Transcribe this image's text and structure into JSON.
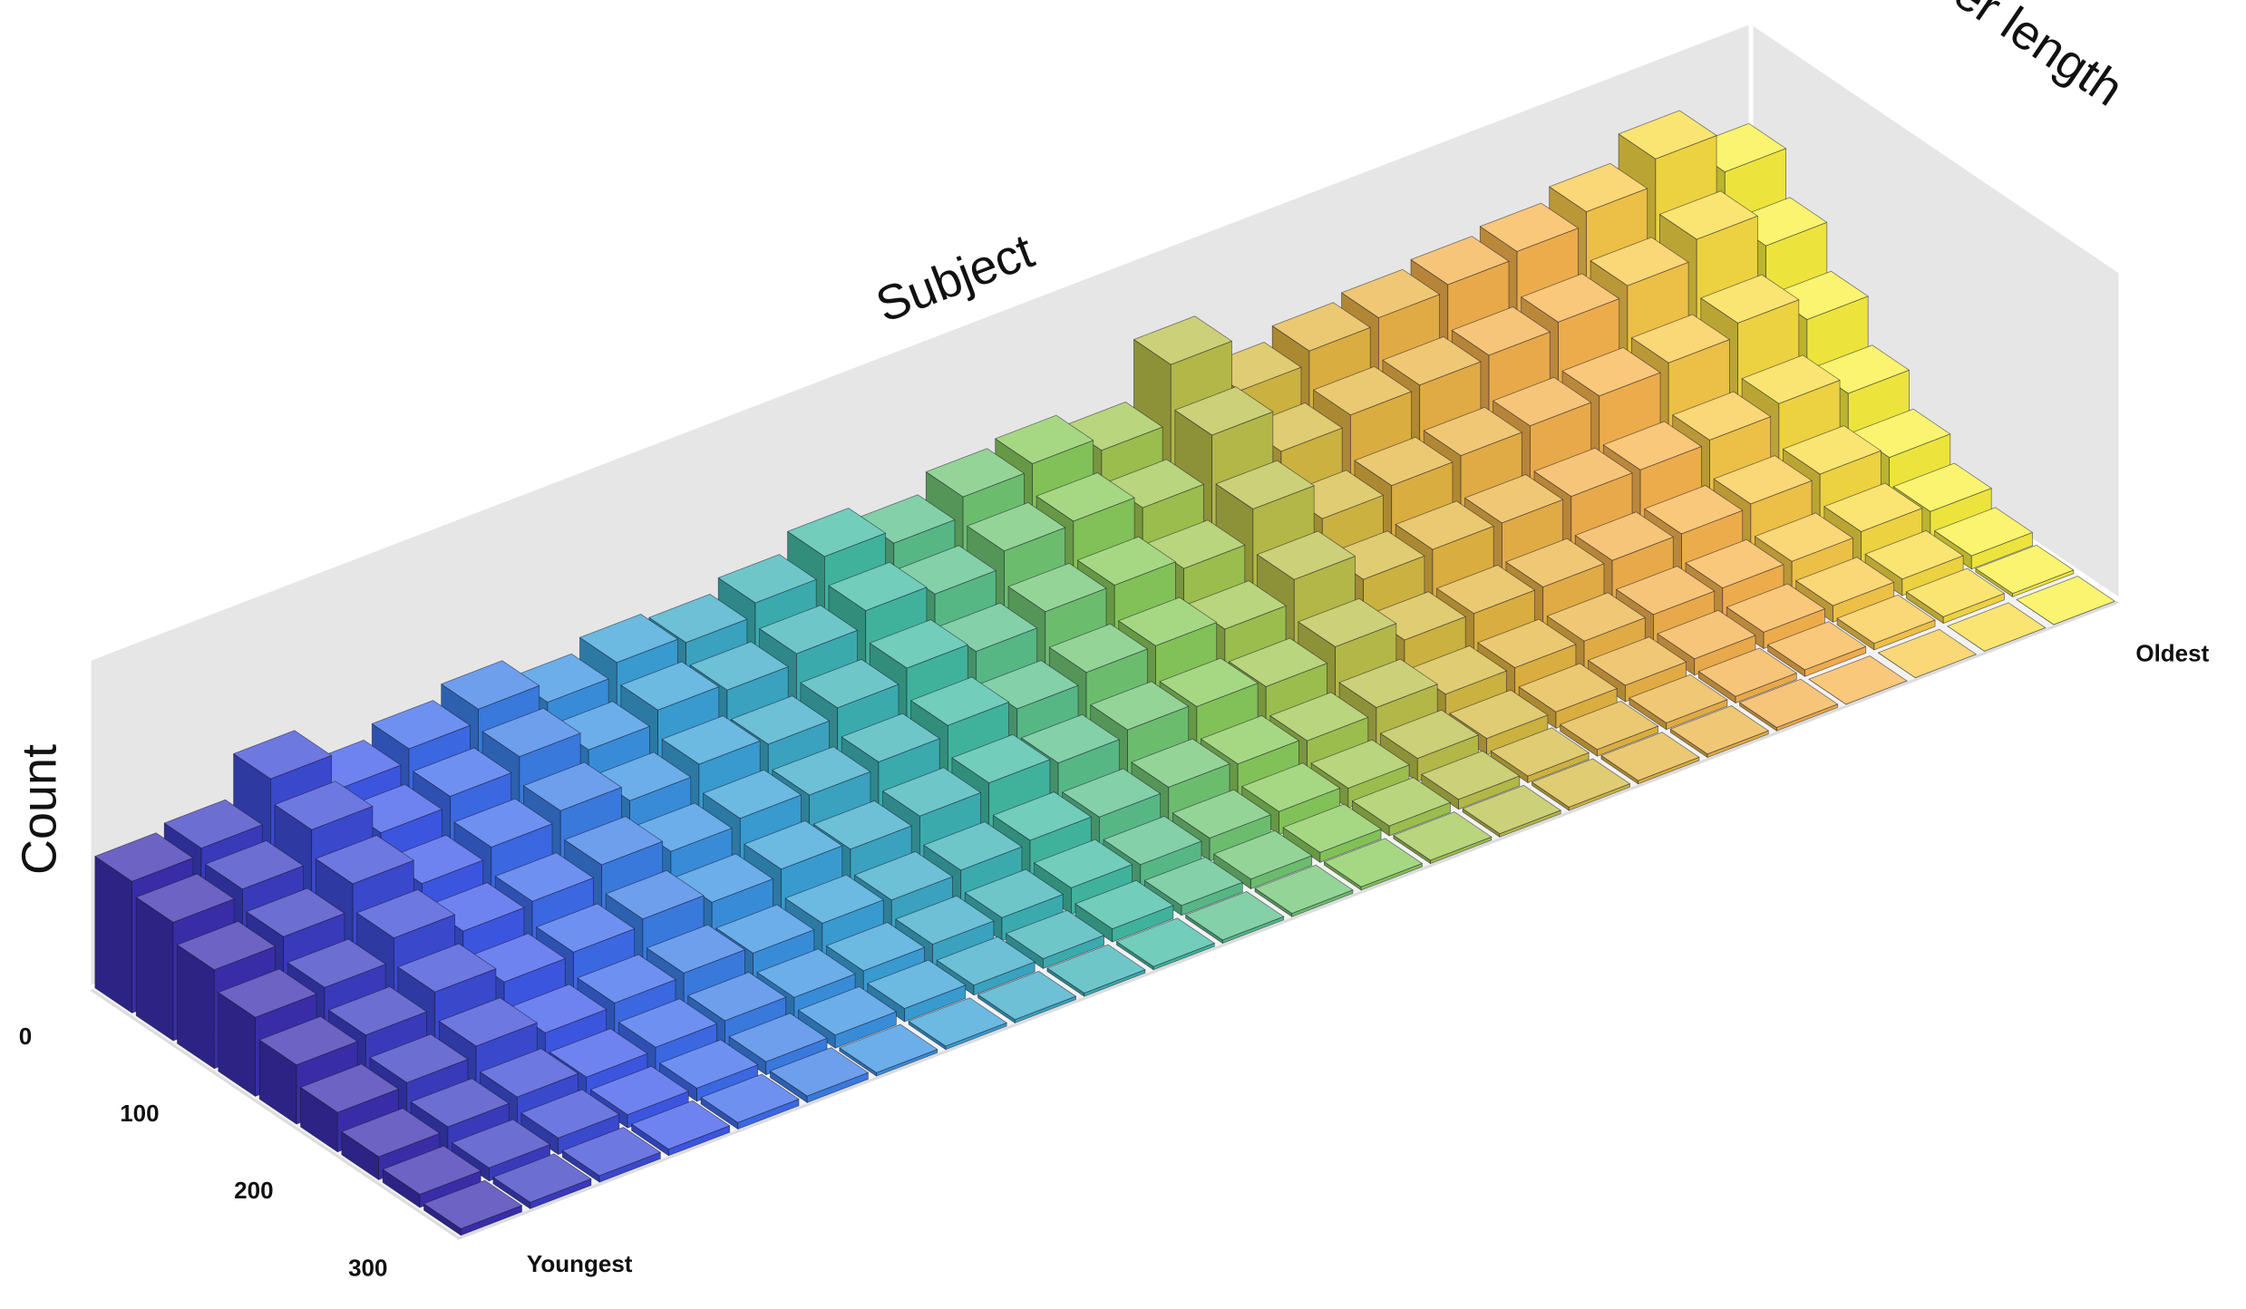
{
  "chart_data": {
    "type": "bar3d",
    "x_label": "Subject",
    "y_label": "Fiber length",
    "z_label": "Count",
    "categories": [
      "Youngest",
      null,
      null,
      null,
      null,
      null,
      null,
      null,
      null,
      null,
      null,
      null,
      null,
      null,
      null,
      null,
      null,
      null,
      null,
      null,
      null,
      null,
      null,
      "Oldest"
    ],
    "fiber_length": [
      18,
      54,
      90,
      126,
      162,
      198,
      234,
      270,
      306
    ],
    "ylim": [
      0,
      324
    ],
    "yticks": [
      0,
      100,
      200,
      300
    ],
    "zlim": [
      0,
      100
    ],
    "colormap": [
      "#3b2fb0",
      "#3f5ef0",
      "#3a9ee0",
      "#40bba8",
      "#8ccc58",
      "#e0b840",
      "#f8b050",
      "#f8f040"
    ],
    "values": [
      [
        40,
        36,
        30,
        24,
        18,
        12,
        7,
        4,
        2
      ],
      [
        42,
        38,
        32,
        25,
        19,
        13,
        8,
        4,
        2
      ],
      [
        55,
        48,
        40,
        32,
        24,
        16,
        9,
        5,
        2
      ],
      [
        44,
        39,
        32,
        26,
        19,
        12,
        7,
        4,
        2
      ],
      [
        48,
        42,
        35,
        27,
        20,
        13,
        8,
        4,
        2
      ],
      [
        52,
        46,
        38,
        30,
        22,
        14,
        8,
        4,
        2
      ],
      [
        46,
        40,
        33,
        26,
        19,
        12,
        7,
        4,
        1
      ],
      [
        50,
        44,
        36,
        28,
        21,
        13,
        7,
        4,
        1
      ],
      [
        48,
        42,
        34,
        27,
        19,
        12,
        7,
        3,
        1
      ],
      [
        52,
        45,
        37,
        29,
        21,
        13,
        7,
        3,
        1
      ],
      [
        58,
        50,
        41,
        32,
        23,
        14,
        8,
        4,
        1
      ],
      [
        54,
        47,
        38,
        29,
        21,
        13,
        7,
        3,
        1
      ],
      [
        60,
        52,
        42,
        32,
        23,
        14,
        7,
        3,
        1
      ],
      [
        62,
        53,
        42,
        32,
        22,
        13,
        7,
        3,
        1
      ],
      [
        58,
        49,
        39,
        29,
        20,
        12,
        6,
        3,
        1
      ],
      [
        76,
        63,
        49,
        36,
        24,
        14,
        7,
        3,
        1
      ],
      [
        60,
        50,
        38,
        28,
        18,
        10,
        5,
        2,
        1
      ],
      [
        64,
        53,
        40,
        29,
        18,
        10,
        5,
        2,
        1
      ],
      [
        66,
        54,
        41,
        29,
        18,
        10,
        5,
        2,
        1
      ],
      [
        68,
        55,
        42,
        29,
        18,
        10,
        5,
        2,
        1
      ],
      [
        70,
        57,
        43,
        29,
        18,
        10,
        5,
        2,
        0
      ],
      [
        74,
        60,
        45,
        30,
        19,
        10,
        5,
        2,
        0
      ],
      [
        82,
        66,
        49,
        33,
        20,
        11,
        5,
        2,
        0
      ],
      [
        70,
        56,
        42,
        28,
        17,
        9,
        4,
        1,
        0
      ]
    ]
  }
}
